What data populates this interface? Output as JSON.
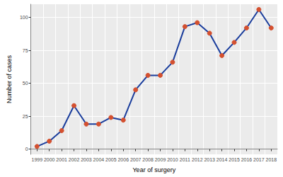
{
  "chart_data": {
    "type": "line",
    "x_label": "Year of surgery",
    "y_label": "Number of cases",
    "categories": [
      "1999",
      "2000",
      "2001",
      "2002",
      "2003",
      "2004",
      "2005",
      "2006",
      "2007",
      "2008",
      "2009",
      "2010",
      "2011",
      "2012",
      "2013",
      "2014",
      "2015",
      "2016",
      "2017",
      "2018"
    ],
    "values": [
      2,
      6,
      14,
      33,
      19,
      19,
      24,
      22,
      45,
      56,
      56,
      66,
      93,
      96,
      88,
      71,
      81,
      92,
      106,
      92
    ],
    "color": "#1a3d9c",
    "colors": [
      "#d4502f",
      "#d4502f",
      "#d4502f",
      "#d4502f",
      "#d4502f",
      "#d4502f",
      "#d4502f",
      "#d4502f",
      "#d4502f",
      "#d4502f",
      "#d4502f",
      "#d4502f",
      "#d4502f",
      "#d4502f",
      "#d4502f",
      "#d4502f",
      "#d4502f",
      "#d4502f",
      "#d4502f",
      "#d4502f"
    ],
    "marker": "circle",
    "ylim": [
      -4,
      110
    ],
    "yticks": [
      0,
      25,
      50,
      75,
      100
    ],
    "grid": true
  }
}
